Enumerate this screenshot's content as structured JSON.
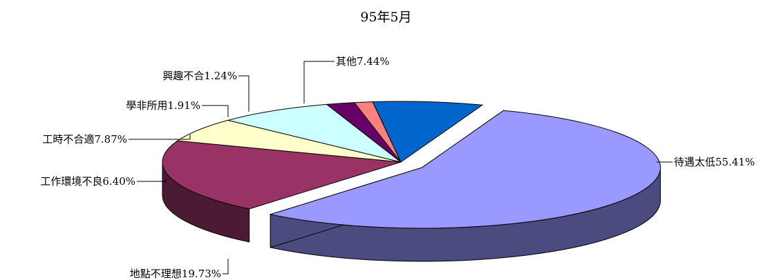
{
  "chart_data": {
    "type": "pie",
    "title": "95年5月",
    "slices": [
      {
        "label": "待遇太低",
        "value": 55.41,
        "display": "待遇太低55.41%",
        "color": "#9999ff",
        "side_color": "#4b4b80"
      },
      {
        "label": "地點不理想",
        "value": 19.73,
        "display": "地點不理想19.73%",
        "color": "#993366",
        "side_color": "#4c1a33"
      },
      {
        "label": "工作環境不良",
        "value": 6.4,
        "display": "工作環境不良6.40%",
        "color": "#ffffcc",
        "side_color": "#808066"
      },
      {
        "label": "工時不合適",
        "value": 7.87,
        "display": "工時不合適7.87%",
        "color": "#ccffff",
        "side_color": "#668080"
      },
      {
        "label": "學非所用",
        "value": 1.91,
        "display": "學非所用1.91%",
        "color": "#660066",
        "side_color": "#330033"
      },
      {
        "label": "興趣不合",
        "value": 1.24,
        "display": "興趣不合1.24%",
        "color": "#ff8080",
        "side_color": "#804040"
      },
      {
        "label": "其他",
        "value": 7.44,
        "display": "其他7.44%",
        "color": "#0066cc",
        "side_color": "#003366"
      }
    ],
    "legend": "none",
    "style": "3d-exploded"
  }
}
